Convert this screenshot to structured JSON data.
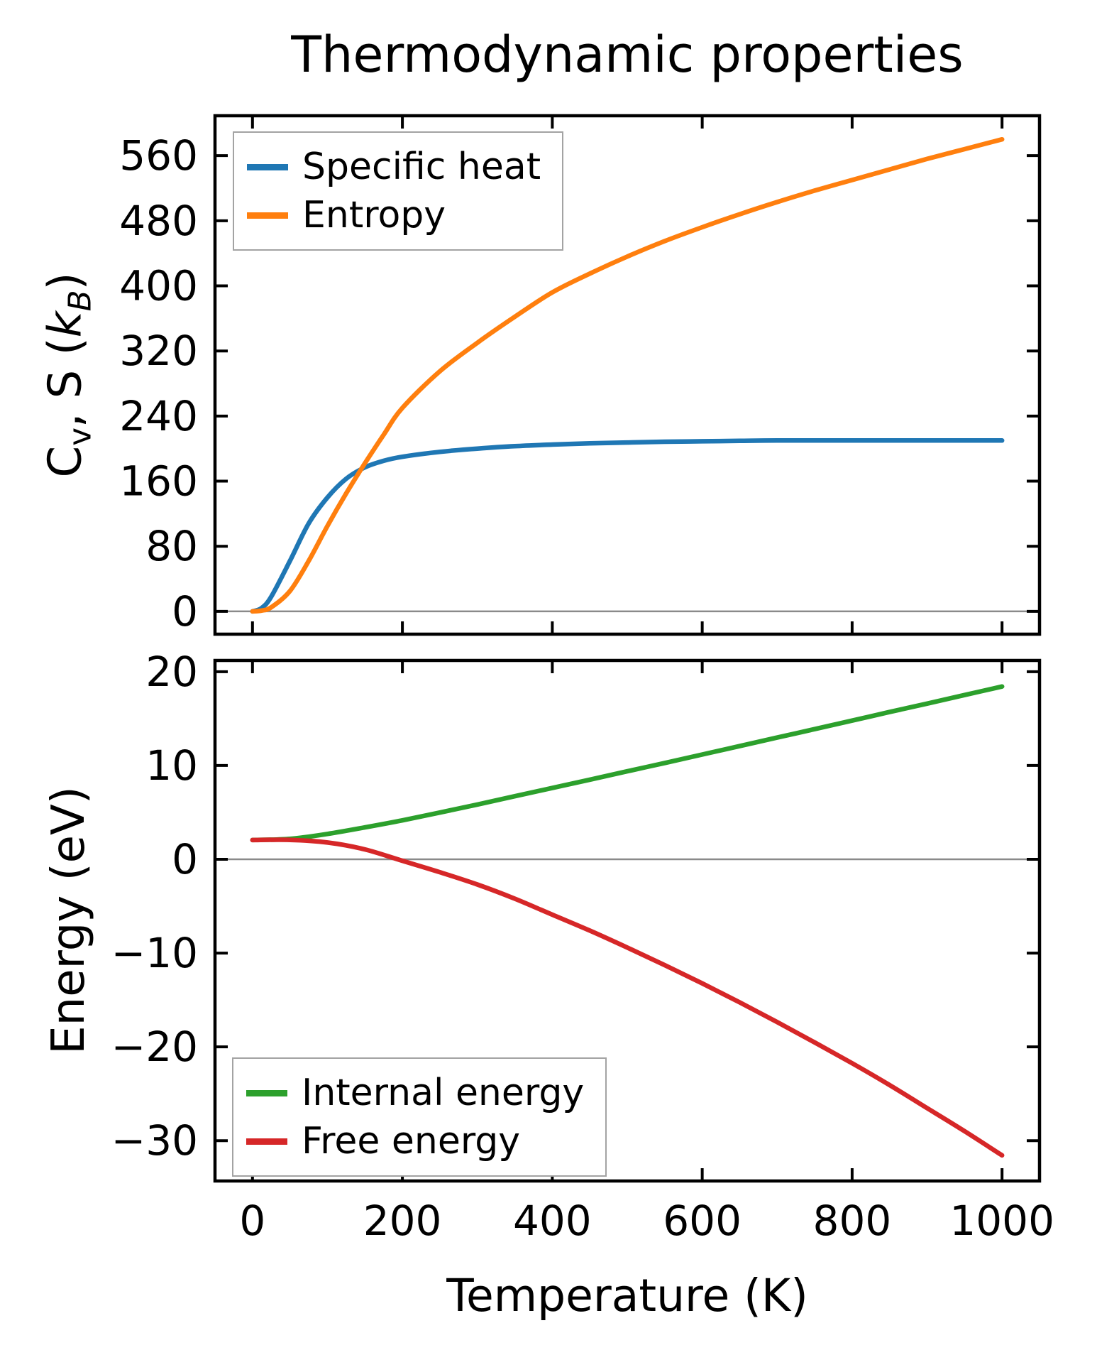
{
  "figure_title": "Thermodynamic properties",
  "colors": {
    "specific_heat": "#1f77b4",
    "entropy": "#ff7f0e",
    "internal_energy": "#2ca02c",
    "free_energy": "#d62728",
    "zero_line": "#8a8a8a",
    "frame": "#000000",
    "legend_edge": "#a3a3a3"
  },
  "chart_data": [
    {
      "type": "line",
      "title": "Thermodynamic properties",
      "ylabel": "Cv, S (kB)",
      "ylabel_parts": {
        "c": "C",
        "c_sub": "v",
        "mid": ", S (",
        "k": "k",
        "k_sub": "B",
        "close": ")"
      },
      "xlim": [
        -50,
        1050
      ],
      "ylim": [
        -28,
        609
      ],
      "grid": false,
      "zero_line": true,
      "x_ticks": [
        0,
        200,
        400,
        600,
        800,
        1000
      ],
      "x_tick_labels": [
        "0",
        "200",
        "400",
        "600",
        "800",
        "1000"
      ],
      "x_tick_labels_shown": false,
      "y_ticks": [
        0,
        80,
        160,
        240,
        320,
        400,
        480,
        560
      ],
      "y_tick_labels": [
        "0",
        "80",
        "160",
        "240",
        "320",
        "400",
        "480",
        "560"
      ],
      "legend": {
        "position": "upper left",
        "entries": [
          {
            "label": "Specific heat",
            "color": "#1f77b4"
          },
          {
            "label": "Entropy",
            "color": "#ff7f0e"
          }
        ]
      },
      "series": [
        {
          "name": "Specific heat",
          "color": "#1f77b4",
          "x": [
            0,
            12,
            25,
            50,
            75,
            100,
            125,
            150,
            175,
            200,
            250,
            300,
            350,
            400,
            450,
            500,
            550,
            600,
            650,
            700,
            800,
            900,
            1000
          ],
          "y": [
            0,
            4,
            18,
            62,
            108,
            140,
            163,
            177,
            185,
            190,
            196,
            200,
            203,
            205,
            206.5,
            207.5,
            208.5,
            209,
            209.5,
            210,
            210,
            210,
            210
          ]
        },
        {
          "name": "Entropy",
          "color": "#ff7f0e",
          "x": [
            0,
            12,
            25,
            50,
            75,
            100,
            125,
            150,
            175,
            200,
            250,
            300,
            350,
            400,
            450,
            500,
            550,
            600,
            650,
            700,
            750,
            800,
            850,
            900,
            950,
            1000
          ],
          "y": [
            0,
            1,
            5,
            25,
            62,
            105,
            145,
            182,
            217,
            250,
            295,
            330,
            362,
            392,
            415,
            436,
            455,
            472,
            488,
            503,
            517,
            530,
            543,
            556,
            568,
            580
          ]
        }
      ]
    },
    {
      "type": "line",
      "xlabel": "Temperature (K)",
      "ylabel": "Energy (eV)",
      "xlim": [
        -50,
        1050
      ],
      "ylim": [
        -34.3,
        21.2
      ],
      "grid": false,
      "zero_line": true,
      "x_ticks": [
        0,
        200,
        400,
        600,
        800,
        1000
      ],
      "x_tick_labels": [
        "0",
        "200",
        "400",
        "600",
        "800",
        "1000"
      ],
      "x_tick_labels_shown": true,
      "y_ticks": [
        -30,
        -20,
        -10,
        0,
        10,
        20
      ],
      "y_tick_labels": [
        "−30",
        "−20",
        "−10",
        "0",
        "10",
        "20"
      ],
      "legend": {
        "position": "lower left",
        "entries": [
          {
            "label": "Internal energy",
            "color": "#2ca02c"
          },
          {
            "label": "Free energy",
            "color": "#d62728"
          }
        ]
      },
      "series": [
        {
          "name": "Internal energy",
          "color": "#2ca02c",
          "x": [
            0,
            50,
            100,
            150,
            200,
            250,
            300,
            350,
            400,
            450,
            500,
            550,
            600,
            650,
            700,
            750,
            800,
            850,
            900,
            950,
            1000
          ],
          "y": [
            2.05,
            2.18,
            2.7,
            3.4,
            4.15,
            4.98,
            5.84,
            6.72,
            7.6,
            8.49,
            9.38,
            10.27,
            11.17,
            12.07,
            12.98,
            13.88,
            14.79,
            15.7,
            16.6,
            17.51,
            18.42
          ]
        },
        {
          "name": "Free energy",
          "color": "#d62728",
          "x": [
            0,
            50,
            100,
            150,
            200,
            250,
            300,
            350,
            400,
            450,
            500,
            550,
            600,
            650,
            700,
            750,
            800,
            850,
            900,
            950,
            1000
          ],
          "y": [
            2.05,
            2.07,
            1.79,
            1.05,
            -0.16,
            -1.38,
            -2.69,
            -4.2,
            -5.91,
            -7.6,
            -9.41,
            -11.29,
            -13.23,
            -15.26,
            -17.36,
            -19.53,
            -21.75,
            -24.07,
            -26.53,
            -28.99,
            -31.57
          ]
        }
      ]
    }
  ]
}
